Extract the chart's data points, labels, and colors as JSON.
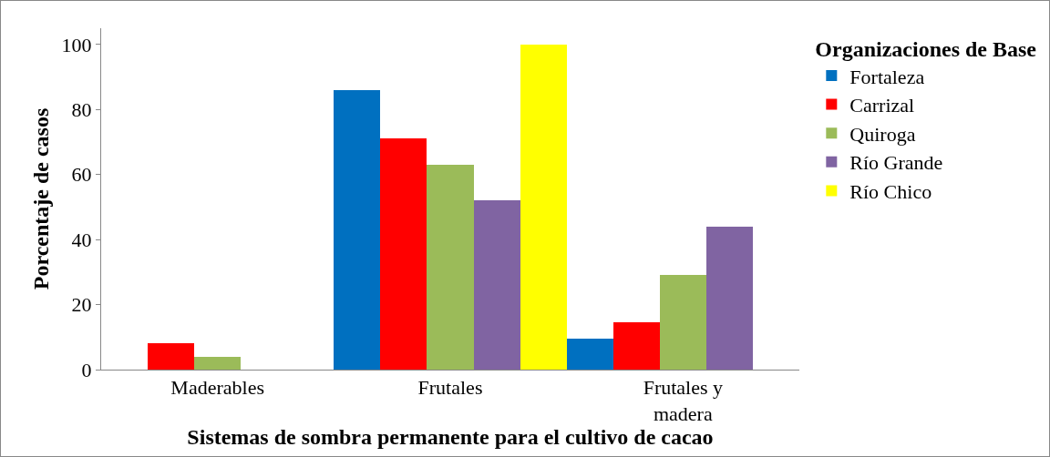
{
  "chart_data": {
    "type": "bar",
    "xlabel": "Sistemas de sombra permanente para el cultivo de cacao",
    "ylabel": "Porcentaje de casos",
    "legend_title": "Organizaciones de Base",
    "categories": [
      "Maderables",
      "Frutales",
      "Frutales y madera"
    ],
    "series": [
      {
        "name": "Fortaleza",
        "color": "#0070c0",
        "values": [
          null,
          86,
          9.5
        ]
      },
      {
        "name": "Carrizal",
        "color": "#ff0000",
        "values": [
          8,
          71,
          14.5
        ]
      },
      {
        "name": "Quiroga",
        "color": "#9bbb59",
        "values": [
          4,
          63,
          29
        ]
      },
      {
        "name": "Río Grande",
        "color": "#8064a2",
        "values": [
          null,
          52,
          44
        ]
      },
      {
        "name": "Río Chico",
        "color": "#ffff00",
        "values": [
          null,
          100,
          null
        ]
      }
    ],
    "ylim": [
      0,
      105
    ],
    "yticks": [
      0,
      20,
      40,
      60,
      80,
      100
    ],
    "grid": false,
    "legend": "top right"
  }
}
